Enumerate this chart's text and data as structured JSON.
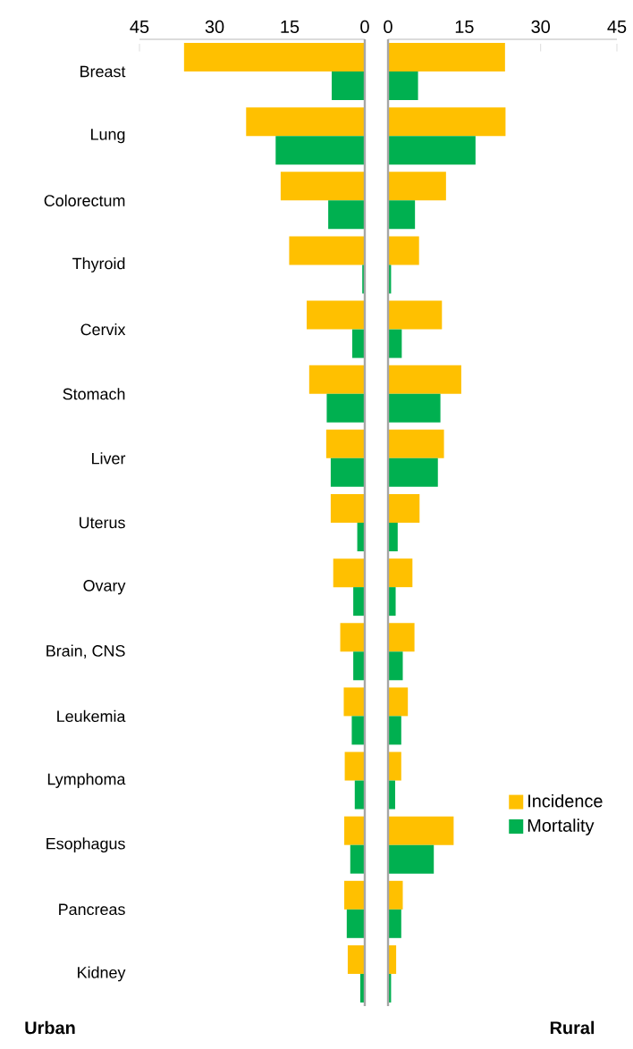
{
  "chart_data": [
    {
      "type": "bar",
      "orientation": "horizontal",
      "xlabel": "Urban",
      "xlim": [
        45,
        0
      ],
      "xticks": [
        45,
        30,
        15,
        0
      ],
      "categories": [
        "Breast",
        "Lung",
        "Colorectum",
        "Thyroid",
        "Cervix",
        "Stomach",
        "Liver",
        "Uterus",
        "Ovary",
        "Brain, CNS",
        "Leukemia",
        "Lymphoma",
        "Esophagus",
        "Pancreas",
        "Kidney"
      ],
      "series": [
        {
          "color": "#ffc000",
          "values": [
            36.1,
            23.7,
            16.8,
            15.1,
            11.6,
            11.1,
            7.7,
            6.8,
            6.3,
            4.9,
            4.2,
            4.0,
            4.1,
            4.1,
            3.4
          ]
        },
        {
          "color": "#00b050",
          "values": [
            6.6,
            17.8,
            7.3,
            0.5,
            2.5,
            7.6,
            6.8,
            1.5,
            2.3,
            2.3,
            2.6,
            2.0,
            2.9,
            3.6,
            0.9
          ]
        }
      ]
    },
    {
      "type": "bar",
      "orientation": "horizontal",
      "xlabel": "Rural",
      "xlim": [
        0,
        45
      ],
      "xticks": [
        0,
        15,
        30,
        45
      ],
      "tick_labels": "x",
      "legend": "bottom right",
      "categories": [
        null,
        null,
        null,
        null,
        null,
        null,
        null,
        null,
        null,
        null,
        null,
        null,
        null,
        null,
        null
      ],
      "series": [
        {
          "name": "Incidence",
          "color": "#ffc000",
          "values": [
            23.0,
            23.1,
            11.4,
            6.1,
            10.6,
            14.4,
            11.0,
            6.2,
            4.8,
            5.2,
            3.9,
            2.6,
            12.9,
            2.9,
            1.6
          ]
        },
        {
          "name": "Mortality",
          "color": "#00b050",
          "values": [
            5.9,
            17.2,
            5.3,
            0.6,
            2.7,
            10.3,
            9.8,
            1.9,
            1.5,
            2.9,
            2.6,
            1.4,
            9.0,
            2.6,
            0.6
          ]
        }
      ]
    }
  ]
}
